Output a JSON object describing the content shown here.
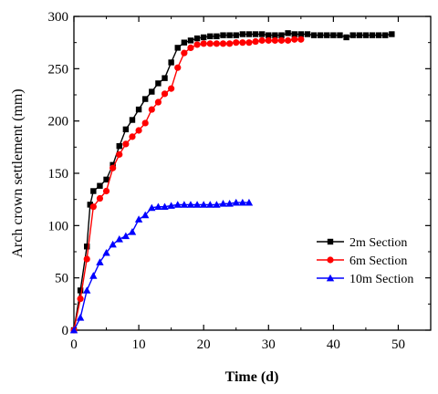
{
  "chart_data": {
    "type": "line",
    "title": "",
    "xlabel": "Time (d)",
    "ylabel": "Arch crown settlement (mm)",
    "xlim": [
      0,
      55
    ],
    "ylim": [
      0,
      300
    ],
    "xticks": [
      0,
      10,
      20,
      30,
      40,
      50
    ],
    "yticks": [
      0,
      50,
      100,
      150,
      200,
      250,
      300
    ],
    "grid": false,
    "legend_position": "right",
    "series": [
      {
        "name": "2m Section",
        "color": "#000000",
        "marker": "square",
        "x": [
          0,
          1,
          2,
          2.5,
          3,
          4,
          5,
          6,
          7,
          8,
          9,
          10,
          11,
          12,
          13,
          14,
          15,
          16,
          17,
          18,
          19,
          20,
          21,
          22,
          23,
          24,
          25,
          26,
          27,
          28,
          29,
          30,
          31,
          32,
          33,
          34,
          35,
          36,
          37,
          38,
          39,
          40,
          41,
          42,
          43,
          44,
          45,
          46,
          47,
          48,
          49
        ],
        "y": [
          0,
          38,
          80,
          120,
          133,
          138,
          144,
          158,
          176,
          192,
          201,
          211,
          221,
          228,
          236,
          241,
          256,
          270,
          275,
          277,
          279,
          280,
          281,
          281,
          282,
          282,
          282,
          283,
          283,
          283,
          283,
          282,
          282,
          282,
          284,
          283,
          283,
          283,
          282,
          282,
          282,
          282,
          282,
          280,
          282,
          282,
          282,
          282,
          282,
          282,
          283
        ]
      },
      {
        "name": "6m Section",
        "color": "#ff0000",
        "marker": "circle",
        "x": [
          0,
          1,
          2,
          3,
          4,
          5,
          6,
          7,
          8,
          9,
          10,
          11,
          12,
          13,
          14,
          15,
          16,
          17,
          18,
          19,
          20,
          21,
          22,
          23,
          24,
          25,
          26,
          27,
          28,
          29,
          30,
          31,
          32,
          33,
          34,
          35
        ],
        "y": [
          0,
          30,
          68,
          118,
          126,
          133,
          155,
          168,
          178,
          185,
          191,
          198,
          211,
          218,
          226,
          231,
          251,
          265,
          270,
          273,
          274,
          274,
          274,
          274,
          274,
          275,
          275,
          275,
          276,
          277,
          277,
          277,
          277,
          277,
          278,
          278
        ]
      },
      {
        "name": "10m Section",
        "color": "#0000ff",
        "marker": "triangle",
        "x": [
          0,
          1,
          2,
          3,
          4,
          5,
          6,
          7,
          8,
          9,
          10,
          11,
          12,
          13,
          14,
          15,
          16,
          17,
          18,
          19,
          20,
          21,
          22,
          23,
          24,
          25,
          26,
          27
        ],
        "y": [
          0,
          12,
          38,
          52,
          65,
          74,
          82,
          87,
          90,
          94,
          106,
          110,
          117,
          118,
          118,
          119,
          120,
          120,
          120,
          120,
          120,
          120,
          120,
          121,
          121,
          122,
          122,
          122
        ]
      }
    ]
  }
}
